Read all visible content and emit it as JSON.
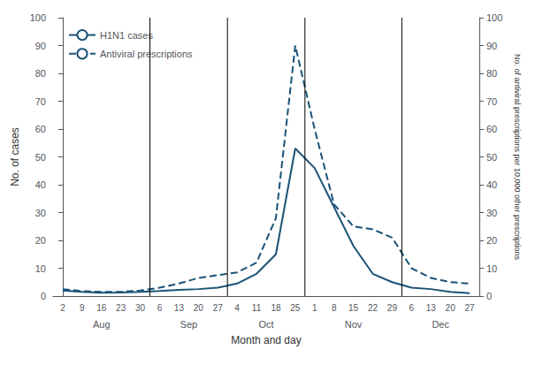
{
  "chart_data": {
    "type": "line",
    "xlabel": "Month and day",
    "ylabel": "No. of cases",
    "y2label": "No. of antiviral prescriptions per 10,000 other prescriptions",
    "categories": [
      "2",
      "9",
      "16",
      "23",
      "30",
      "6",
      "13",
      "20",
      "27",
      "4",
      "11",
      "18",
      "25",
      "1",
      "8",
      "15",
      "22",
      "29",
      "6",
      "13",
      "20",
      "27"
    ],
    "x_groups": [
      {
        "label": "Aug",
        "first": 0,
        "last": 4
      },
      {
        "label": "Sep",
        "first": 5,
        "last": 8
      },
      {
        "label": "Oct",
        "first": 9,
        "last": 12
      },
      {
        "label": "Nov",
        "first": 13,
        "last": 17
      },
      {
        "label": "Dec",
        "first": 18,
        "last": 21
      }
    ],
    "series": [
      {
        "name": "H1N1 cases",
        "color": "#1a5276",
        "line_style": "solid",
        "values": [
          2.0,
          1.5,
          1.2,
          1.3,
          1.5,
          1.8,
          2.2,
          2.5,
          3.0,
          4.5,
          8.0,
          15.0,
          53.0,
          46.0,
          32.0,
          18.0,
          8.0,
          5.0,
          3.0,
          2.5,
          1.5,
          1.0
        ]
      },
      {
        "name": "Antiviral prescriptions",
        "color": "#1a5276",
        "line_style": "dashed",
        "axis": "y2",
        "values": [
          2.5,
          1.8,
          1.5,
          1.5,
          2.0,
          3.0,
          4.5,
          6.5,
          7.5,
          8.5,
          12.0,
          28.0,
          90.0,
          60.0,
          33.0,
          25.0,
          24.0,
          21.0,
          10.0,
          6.5,
          5.0,
          4.5
        ]
      }
    ],
    "ylim": [
      0,
      100
    ],
    "yticks": [
      0,
      10,
      20,
      30,
      40,
      50,
      60,
      70,
      80,
      90,
      100
    ],
    "y2lim": [
      0,
      100
    ],
    "y2ticks": [
      0,
      10,
      20,
      30,
      40,
      50,
      60,
      70,
      80,
      90,
      100
    ],
    "legend": "upper left",
    "grid": false
  }
}
